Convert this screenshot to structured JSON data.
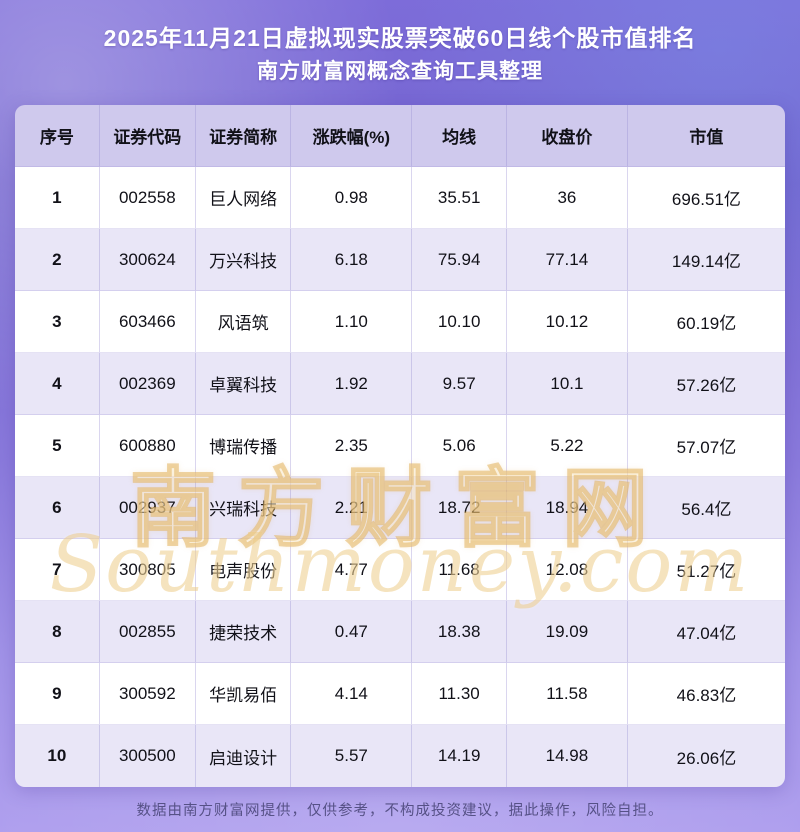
{
  "page": {
    "title_line1": "2025年11月21日虚拟现实股票突破60日线个股市值排名",
    "title_line2": "南方财富网概念查询工具整理",
    "footer": "数据由南方财富网提供，仅供参考，不构成投资建议，据此操作，风险自担。"
  },
  "watermark": {
    "cn": "南方财富网",
    "en": "Southmoney.com"
  },
  "colors": {
    "background_top": "#7d6cd9",
    "background_bottom": "#af9fee",
    "header_row": "#cfc9ed",
    "row_odd": "#ffffff",
    "row_even": "#e9e6f7",
    "title_text": "#ffffff",
    "watermark_gold": "#e9c97f"
  },
  "chart_data": {
    "type": "table",
    "title": "2025年11月21日虚拟现实股票突破60日线个股市值排名",
    "subtitle": "南方财富网概念查询工具整理",
    "columns": [
      "序号",
      "证券代码",
      "证券简称",
      "涨跌幅(%)",
      "均线",
      "收盘价",
      "市值"
    ],
    "rows": [
      [
        "1",
        "002558",
        "巨人网络",
        "0.98",
        "35.51",
        "36",
        "696.51亿"
      ],
      [
        "2",
        "300624",
        "万兴科技",
        "6.18",
        "75.94",
        "77.14",
        "149.14亿"
      ],
      [
        "3",
        "603466",
        "风语筑",
        "1.10",
        "10.10",
        "10.12",
        "60.19亿"
      ],
      [
        "4",
        "002369",
        "卓翼科技",
        "1.92",
        "9.57",
        "10.1",
        "57.26亿"
      ],
      [
        "5",
        "600880",
        "博瑞传播",
        "2.35",
        "5.06",
        "5.22",
        "57.07亿"
      ],
      [
        "6",
        "002937",
        "兴瑞科技",
        "2.21",
        "18.72",
        "18.94",
        "56.4亿"
      ],
      [
        "7",
        "300805",
        "电声股份",
        "4.77",
        "11.68",
        "12.08",
        "51.27亿"
      ],
      [
        "8",
        "002855",
        "捷荣技术",
        "0.47",
        "18.38",
        "19.09",
        "47.04亿"
      ],
      [
        "9",
        "300592",
        "华凯易佰",
        "4.14",
        "11.30",
        "11.58",
        "46.83亿"
      ],
      [
        "10",
        "300500",
        "启迪设计",
        "5.57",
        "14.19",
        "14.98",
        "26.06亿"
      ]
    ]
  }
}
